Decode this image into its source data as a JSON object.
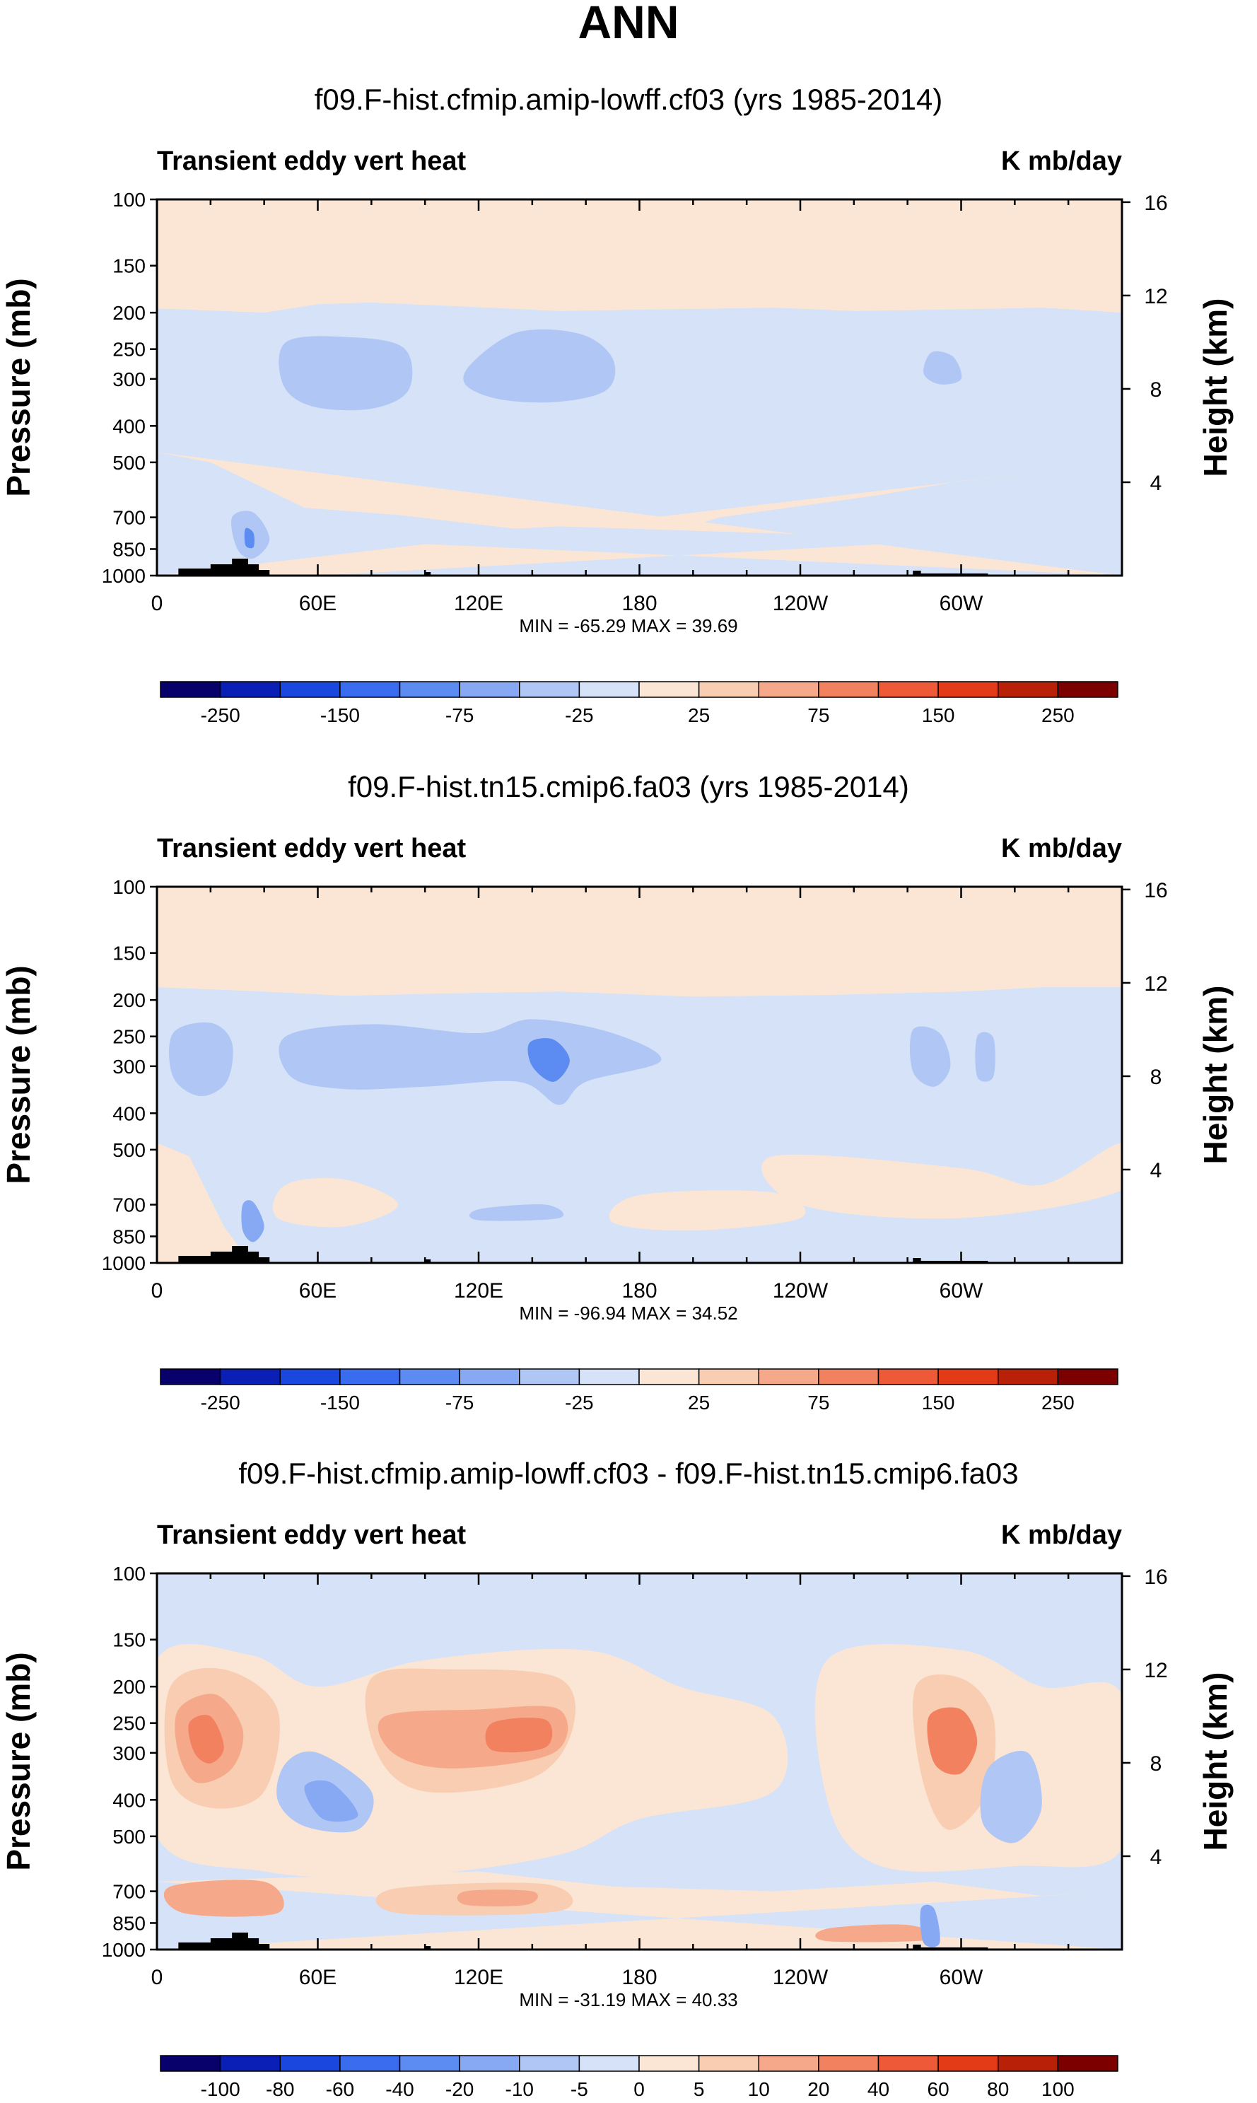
{
  "figure": {
    "title": "ANN"
  },
  "panel_common": {
    "left_label": "Transient eddy vert heat",
    "right_label": "K mb/day",
    "y_left_label": "Pressure (mb)",
    "y_right_label": "Height (km)",
    "pressure_ticks": [
      "100",
      "150",
      "200",
      "250",
      "300",
      "400",
      "500",
      "700",
      "850",
      "1000"
    ],
    "height_ticks": [
      "16",
      "12",
      "8",
      "4"
    ],
    "x_ticks": [
      "0",
      "60E",
      "120E",
      "180",
      "120W",
      "60W"
    ]
  },
  "colors": {
    "ten_levels": [
      "#08006b",
      "#0a1fb5",
      "#1a48de",
      "#3a6cf0",
      "#5c8cf2",
      "#87a8f3",
      "#b0c6f5",
      "#d5e2f7",
      "#fbe6d6",
      "#f8cdb2",
      "#f5a98a",
      "#f28160",
      "#ee5a37",
      "#e33a17",
      "#b82008",
      "#7d0000"
    ],
    "diff_levels": [
      "#08006b",
      "#0a1fb5",
      "#1a48de",
      "#3a6cf0",
      "#5c8cf2",
      "#87a8f3",
      "#b0c6f5",
      "#d5e2f7",
      "#fbe6d6",
      "#f8cdb2",
      "#f5a98a",
      "#f28160",
      "#ee5a37",
      "#e33a17",
      "#b82008",
      "#7d0000"
    ],
    "topography": "#000000"
  },
  "chart_data": [
    {
      "type": "heatmap",
      "title": "f09.F-hist.cfmip.amip-lowff.cf03 (yrs 1985-2014)",
      "min_max": "MIN = -65.29  MAX =  39.69",
      "colorbar_labels": [
        "-250",
        "-150",
        "-75",
        "-25",
        "25",
        "75",
        "150",
        "250"
      ],
      "colorbar_levels": [
        -300,
        -250,
        -200,
        -150,
        -100,
        -75,
        -50,
        -25,
        0,
        25,
        50,
        75,
        100,
        150,
        200,
        250
      ],
      "xlim": [
        0,
        360
      ],
      "ylim_mb": [
        1000,
        100
      ],
      "regions": [
        {
          "name": "upper-positive-layer",
          "value": 12
        },
        {
          "name": "negative-blob-60E",
          "value": -30,
          "lon": 70,
          "p": 290
        },
        {
          "name": "negative-blob-150E",
          "value": -32,
          "lon": 148,
          "p": 300
        },
        {
          "name": "negative-blob-65W",
          "value": -28,
          "lon": 295,
          "p": 290
        },
        {
          "name": "lower-positive-band",
          "value": 10
        }
      ]
    },
    {
      "type": "heatmap",
      "title": "f09.F-hist.tn15.cmip6.fa03 (yrs 1985-2014)",
      "min_max": "MIN = -96.94  MAX =  34.52",
      "colorbar_labels": [
        "-250",
        "-150",
        "-75",
        "-25",
        "25",
        "75",
        "150",
        "250"
      ],
      "colorbar_levels": [
        -300,
        -250,
        -200,
        -150,
        -100,
        -75,
        -50,
        -25,
        0,
        25,
        50,
        75,
        100,
        150,
        200,
        250
      ],
      "xlim": [
        0,
        360
      ],
      "ylim_mb": [
        1000,
        100
      ],
      "regions": [
        {
          "name": "upper-positive-layer",
          "value": 12
        },
        {
          "name": "negative-band-60E-150E",
          "value": -30,
          "lon": 100,
          "p": 290
        },
        {
          "name": "negative-core-150E",
          "value": -55,
          "lon": 148,
          "p": 290
        },
        {
          "name": "negative-blob-65W",
          "value": -28,
          "lon": 295,
          "p": 290
        },
        {
          "name": "lower-positive-patches",
          "value": 10
        }
      ]
    },
    {
      "type": "heatmap",
      "title": "f09.F-hist.cfmip.amip-lowff.cf03 - f09.F-hist.tn15.cmip6.fa03",
      "min_max": "MIN = -31.19  MAX =  40.33",
      "colorbar_labels": [
        "-100",
        "-80",
        "-60",
        "-40",
        "-20",
        "-10",
        "-5",
        "0",
        "5",
        "10",
        "20",
        "40",
        "60",
        "80",
        "100"
      ],
      "colorbar_levels": [
        -120,
        -100,
        -80,
        -60,
        -40,
        -20,
        -10,
        -5,
        0,
        5,
        10,
        20,
        40,
        60,
        80,
        100
      ],
      "xlim": [
        0,
        360
      ],
      "ylim_mb": [
        1000,
        100
      ],
      "regions": [
        {
          "name": "positive-core-20E",
          "value": 25,
          "lon": 18,
          "p": 280
        },
        {
          "name": "positive-band-90E-150E",
          "value": 22,
          "lon": 125,
          "p": 270
        },
        {
          "name": "positive-core-70W",
          "value": 25,
          "lon": 298,
          "p": 280
        },
        {
          "name": "negative-blob-60E",
          "value": -18,
          "lon": 63,
          "p": 420
        },
        {
          "name": "negative-blob-45W",
          "value": -12,
          "lon": 318,
          "p": 430
        },
        {
          "name": "lower-positive-band",
          "value": 12
        }
      ]
    }
  ]
}
